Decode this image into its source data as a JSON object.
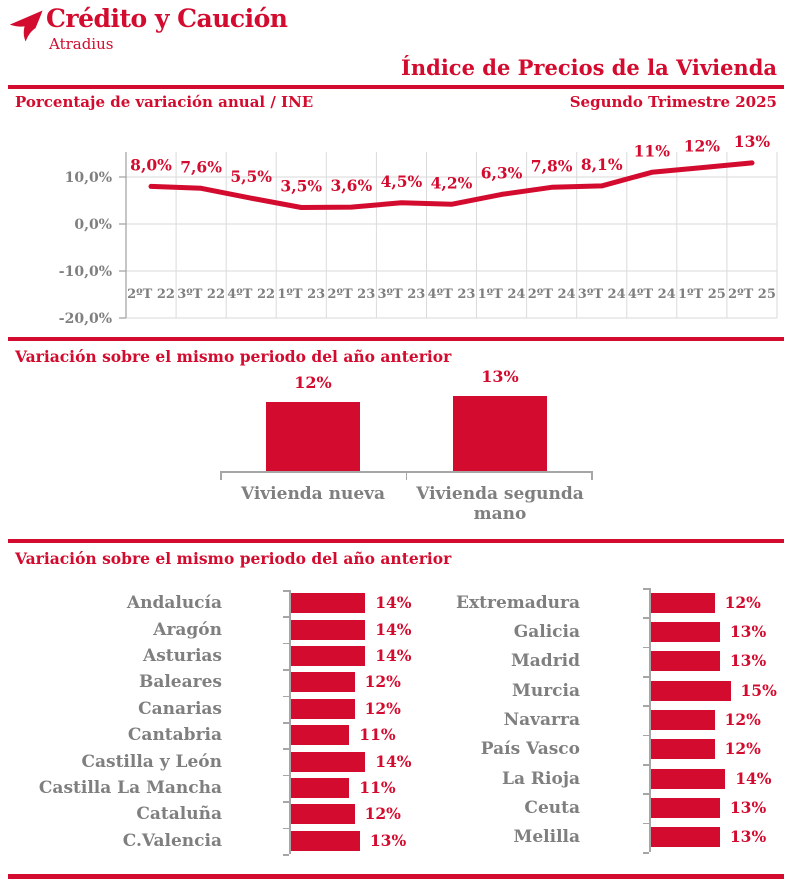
{
  "colors": {
    "red": "#D30B2E",
    "gray": "#7F7F7F",
    "gridline": "#DADADA",
    "axis": "#A6A6A6"
  },
  "logo": {
    "title": "Crédito y Caución",
    "subtitle": "Atradius"
  },
  "header": {
    "title": "Índice de Precios de la Vivienda",
    "chart_subtitle": "Porcentaje de variación anual / INE",
    "period": "Segundo Trimestre 2025"
  },
  "sections": {
    "comparison_title": "Variación sobre el mismo periodo del año anterior",
    "regions_title": "Variación sobre el mismo periodo del año anterior"
  },
  "chart_data": [
    {
      "type": "line",
      "title": "Porcentaje de variación anual / INE",
      "categories": [
        "2ºT 22",
        "3ºT 22",
        "4ºT 22",
        "1ºT 23",
        "2ºT 23",
        "3ºT 23",
        "4ºT 23",
        "1ºT 24",
        "2ºT 24",
        "3ºT 24",
        "4ºT 24",
        "1ºT 25",
        "2ºT 25"
      ],
      "values": [
        8.0,
        7.6,
        5.5,
        3.5,
        3.6,
        4.5,
        4.2,
        6.3,
        7.8,
        8.1,
        11,
        12,
        13
      ],
      "labels": [
        "8,0%",
        "7,6%",
        "5,5%",
        "3,5%",
        "3,6%",
        "4,5%",
        "4,2%",
        "6,3%",
        "7,8%",
        "8,1%",
        "11%",
        "12%",
        "13%"
      ],
      "ylim": [
        -20,
        15
      ],
      "yticks": [
        10,
        0,
        -10,
        -20
      ],
      "ytick_labels": [
        "10,0%",
        "0,0%",
        "-10,0%",
        "-20,0%"
      ],
      "grid": true
    },
    {
      "type": "bar",
      "title": "Variación sobre el mismo periodo del año anterior",
      "categories": [
        "Vivienda nueva",
        "Vivienda segunda mano"
      ],
      "values": [
        12,
        13
      ],
      "labels": [
        "12%",
        "13%"
      ]
    },
    {
      "type": "bar-horizontal",
      "title": "Variación sobre el mismo periodo del año anterior",
      "columns": [
        {
          "categories": [
            "Andalucía",
            "Aragón",
            "Asturias",
            "Baleares",
            "Canarias",
            "Cantabria",
            "Castilla y León",
            "Castilla La Mancha",
            "Cataluña",
            "C.Valencia"
          ],
          "values": [
            14,
            14,
            14,
            12,
            12,
            11,
            14,
            11,
            12,
            13
          ],
          "labels": [
            "14%",
            "14%",
            "14%",
            "12%",
            "12%",
            "11%",
            "14%",
            "11%",
            "12%",
            "13%"
          ]
        },
        {
          "categories": [
            "Extremadura",
            "Galicia",
            "Madrid",
            "Murcia",
            "Navarra",
            "País Vasco",
            "La Rioja",
            "Ceuta",
            "Melilla"
          ],
          "values": [
            12,
            13,
            13,
            15,
            12,
            12,
            14,
            13,
            13
          ],
          "labels": [
            "12%",
            "13%",
            "13%",
            "15%",
            "12%",
            "12%",
            "14%",
            "13%",
            "13%"
          ]
        }
      ]
    }
  ]
}
